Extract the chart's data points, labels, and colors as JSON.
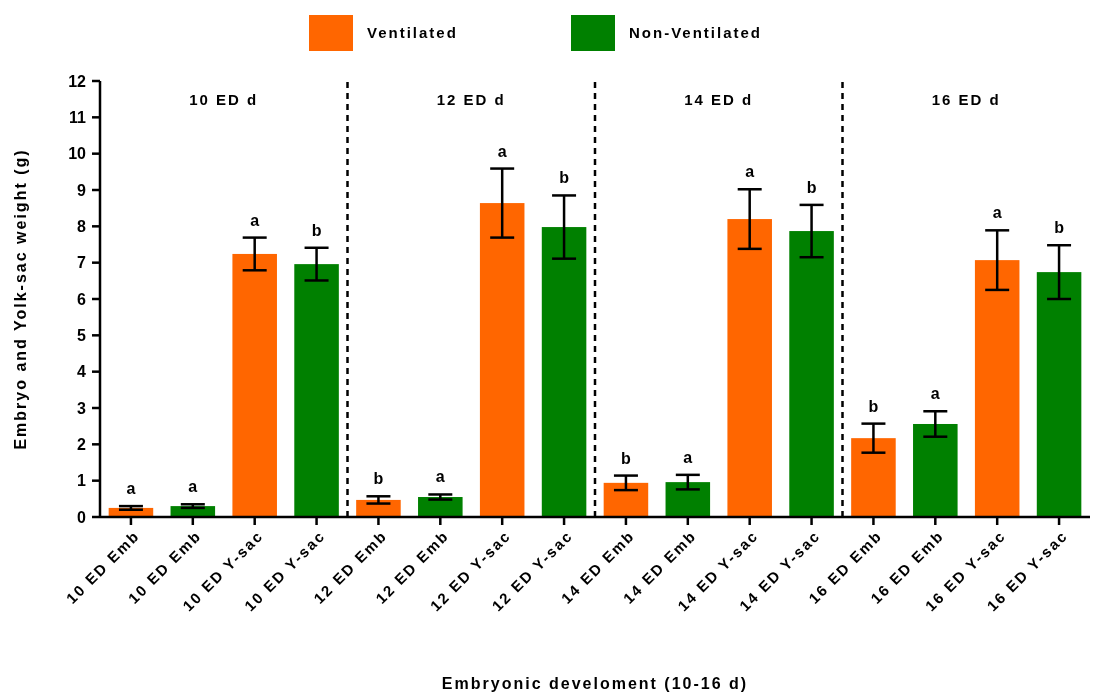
{
  "chart_data": {
    "type": "bar",
    "xlabel": "Embryonic develoment (10-16 d)",
    "ylabel": "Embryo and Yolk-sac weight (g)",
    "categories": [
      "10 ED Emb",
      "10 ED Emb",
      "10 ED Y-sac",
      "10 ED Y-sac",
      "12 ED Emb",
      "12 ED Emb",
      "12 ED Y-sac",
      "12 ED Y-sac",
      "14 ED Emb",
      "14 ED Emb",
      "14 ED Y-sac",
      "14 ED Y-sac",
      "16 ED Emb",
      "16 ED Emb",
      "16 ED Y-sac",
      "16 ED Y-sac"
    ],
    "series": [
      {
        "name": "Ventilated",
        "color": "#ff6600",
        "values": [
          0.25,
          null,
          7.24,
          null,
          0.47,
          null,
          8.64,
          null,
          0.94,
          null,
          8.2,
          null,
          2.17,
          null,
          7.07,
          null
        ],
        "errors": [
          0.05,
          null,
          0.45,
          null,
          0.1,
          null,
          0.95,
          null,
          0.2,
          null,
          0.82,
          null,
          0.4,
          null,
          0.82,
          null
        ],
        "value_labels": [
          "a",
          null,
          "a",
          null,
          "b",
          null,
          "a",
          null,
          "b",
          null,
          "a",
          null,
          "b",
          null,
          "a",
          null
        ]
      },
      {
        "name": "Non-Ventilated",
        "color": "#008000",
        "values": [
          null,
          0.3,
          null,
          6.96,
          null,
          0.55,
          null,
          7.98,
          null,
          0.96,
          null,
          7.87,
          null,
          2.56,
          null,
          6.74
        ],
        "errors": [
          null,
          0.05,
          null,
          0.45,
          null,
          0.07,
          null,
          0.87,
          null,
          0.2,
          null,
          0.72,
          null,
          0.35,
          null,
          0.74
        ],
        "value_labels": [
          null,
          "a",
          null,
          "b",
          null,
          "a",
          null,
          "b",
          null,
          "a",
          null,
          "b",
          null,
          "a",
          null,
          "b"
        ]
      }
    ],
    "ylim": [
      0,
      12
    ],
    "yticks": [
      0,
      1,
      2,
      3,
      4,
      5,
      6,
      7,
      8,
      9,
      10,
      11,
      12
    ],
    "grid": false,
    "legend": "top",
    "annotations": [
      "10 ED d",
      "12 ED d",
      "14 ED d",
      "16 ED d"
    ]
  }
}
